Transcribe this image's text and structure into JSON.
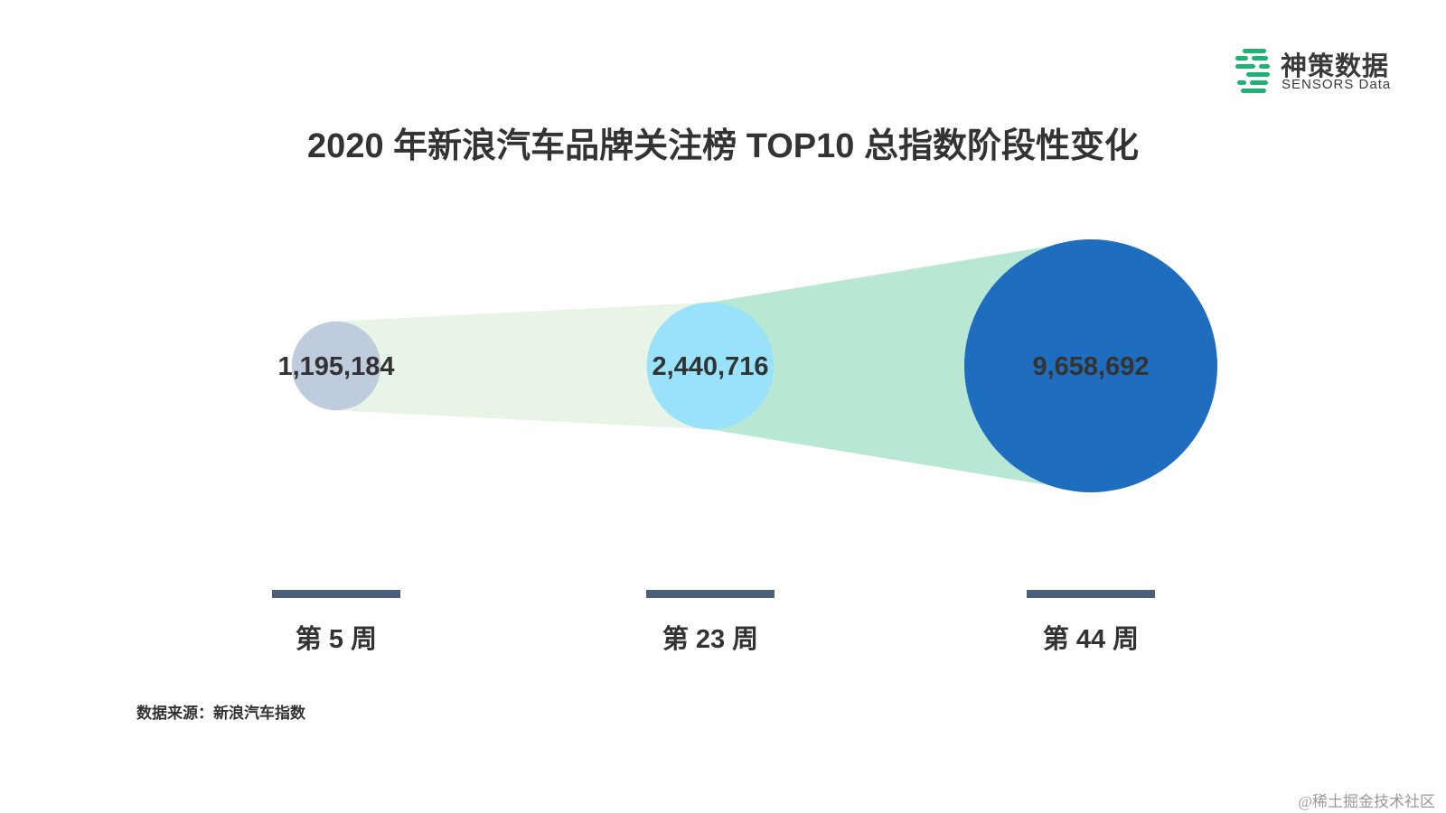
{
  "logo": {
    "name_cn": "神策数据",
    "name_en": "SENSORS Data",
    "color": "#1fb373"
  },
  "title": "2020 年新浪汽车品牌关注榜 TOP10 总指数阶段性变化",
  "source": "数据来源：新浪汽车指数",
  "watermark": "@稀土掘金技术社区",
  "colors": {
    "bar": "#4c5f7b",
    "connector_1": "#e8f5e6",
    "connector_2": "#b8e8d3"
  },
  "chart_data": {
    "type": "bubble",
    "categories": [
      "第 5 周",
      "第 23 周",
      "第 44 周"
    ],
    "values": [
      1195184,
      2440716,
      9658692
    ],
    "labels": [
      "1,195,184",
      "2,440,716",
      "9,658,692"
    ],
    "colors": [
      "#bfccdd",
      "#99e2fa",
      "#1f6dbe"
    ]
  }
}
